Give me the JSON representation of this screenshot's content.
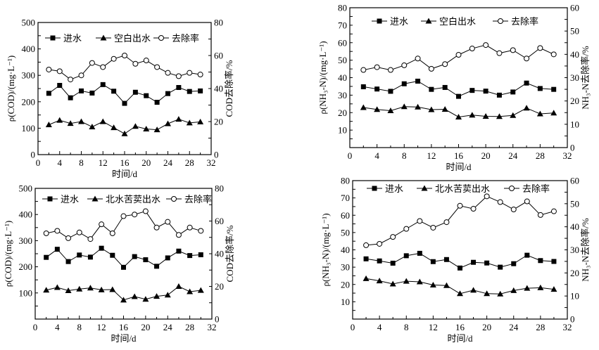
{
  "chart_data": [
    {
      "type": "line",
      "panel": "top-left",
      "xlabel": "时间/d",
      "ylabel": "ρ(COD)/(mg·L⁻¹)",
      "ylabel_right": "COD去除率/%",
      "xlim": [
        0,
        32
      ],
      "ylim": [
        0,
        500
      ],
      "ylim_right": [
        0,
        80
      ],
      "x_ticks": [
        "0",
        "4",
        "8",
        "12",
        "16",
        "20",
        "24",
        "28",
        "32"
      ],
      "y_ticks": [
        "0",
        "100",
        "200",
        "300",
        "400",
        "500"
      ],
      "y_ticks_right": [
        "0",
        "20",
        "40",
        "60",
        "80"
      ],
      "legend_position": "top",
      "x": [
        2,
        4,
        6,
        8,
        10,
        12,
        14,
        16,
        18,
        20,
        22,
        24,
        26,
        28,
        30
      ],
      "series": [
        {
          "name": "进水",
          "marker": "square",
          "axis": "left",
          "values": [
            232,
            262,
            215,
            241,
            233,
            265,
            240,
            194,
            236,
            223,
            198,
            231,
            254,
            239,
            241
          ]
        },
        {
          "name": "空白出水",
          "marker": "triangle",
          "axis": "left",
          "values": [
            113,
            130,
            118,
            125,
            105,
            125,
            102,
            79,
            107,
            97,
            94,
            117,
            134,
            120,
            124
          ]
        },
        {
          "name": "去除率",
          "marker": "circle",
          "axis": "right",
          "values": [
            51.5,
            50.5,
            45.5,
            48,
            55.5,
            53,
            58,
            60,
            55,
            57,
            53,
            49.5,
            47.5,
            49.5,
            48.5
          ]
        }
      ]
    },
    {
      "type": "line",
      "panel": "top-right",
      "xlabel": "时间/d",
      "ylabel": "ρ(NH₃-N)/(mg·L⁻¹)",
      "ylabel_right": "NH₃-N去除率/%",
      "xlim": [
        0,
        32
      ],
      "ylim": [
        0,
        80
      ],
      "ylim_right": [
        0,
        60
      ],
      "x_ticks": [
        "0",
        "4",
        "8",
        "12",
        "16",
        "20",
        "24",
        "28",
        "32"
      ],
      "y_ticks": [
        "10",
        "20",
        "30",
        "40",
        "50",
        "60",
        "70",
        "80"
      ],
      "y_ticks_right": [
        "0",
        "10",
        "20",
        "30",
        "40",
        "50",
        "60"
      ],
      "legend_position": "top",
      "x": [
        2,
        4,
        6,
        8,
        10,
        12,
        14,
        16,
        18,
        20,
        22,
        24,
        26,
        28,
        30
      ],
      "series": [
        {
          "name": "进水",
          "marker": "square",
          "axis": "left",
          "values": [
            34.8,
            33.5,
            32.2,
            36.5,
            38,
            33.3,
            34.4,
            29.3,
            32.7,
            32.3,
            30,
            31.8,
            36.9,
            33.8,
            33.3
          ]
        },
        {
          "name": "空白出水",
          "marker": "triangle",
          "axis": "left",
          "values": [
            22.9,
            21.8,
            21.1,
            23.4,
            23.2,
            21.7,
            21.9,
            17.5,
            18.6,
            17.9,
            17.8,
            18.4,
            22.6,
            19.3,
            19.8
          ]
        },
        {
          "name": "去除率",
          "marker": "circle",
          "axis": "right",
          "values": [
            33.3,
            34.5,
            33.3,
            35.3,
            38.2,
            33.8,
            35.8,
            39.8,
            42.5,
            44,
            40.5,
            41.8,
            38.2,
            42.7,
            40
          ]
        }
      ]
    },
    {
      "type": "line",
      "panel": "bottom-left",
      "xlabel": "时间/d",
      "ylabel": "ρ(COD)/(mg·L⁻¹)",
      "ylabel_right": "COD去除率/%",
      "xlim": [
        0,
        32
      ],
      "ylim": [
        0,
        500
      ],
      "ylim_right": [
        0,
        80
      ],
      "x_ticks": [
        "0",
        "4",
        "8",
        "12",
        "16",
        "20",
        "24",
        "28",
        "32"
      ],
      "y_ticks": [
        "100",
        "200",
        "300",
        "400",
        "500"
      ],
      "y_ticks_right": [
        "0",
        "20",
        "40",
        "60",
        "80"
      ],
      "legend_position": "top",
      "x": [
        2,
        4,
        6,
        8,
        10,
        12,
        14,
        16,
        18,
        20,
        22,
        24,
        26,
        28,
        30
      ],
      "series": [
        {
          "name": "进水",
          "marker": "square",
          "axis": "left",
          "values": [
            236,
            267,
            220,
            245,
            237,
            271,
            244,
            198,
            239,
            227,
            202,
            234,
            260,
            243,
            246
          ]
        },
        {
          "name": "北水苦荬出水",
          "marker": "triangle",
          "axis": "left",
          "values": [
            111,
            121,
            109,
            115,
            119,
            112,
            113,
            73,
            86,
            76,
            87,
            92,
            125,
            105,
            110
          ]
        },
        {
          "name": "去除率",
          "marker": "circle",
          "axis": "right",
          "values": [
            52.5,
            54,
            49.5,
            53,
            49,
            58,
            52.5,
            63,
            64,
            66,
            56,
            59.5,
            51.5,
            56,
            54
          ]
        }
      ]
    },
    {
      "type": "line",
      "panel": "bottom-right",
      "xlabel": "时间/d",
      "ylabel": "ρ(NH₃-N)/(mg·L⁻¹)",
      "ylabel_right": "NH₃-N去除率/%",
      "xlim": [
        0,
        32
      ],
      "ylim": [
        0,
        80
      ],
      "ylim_right": [
        0,
        60
      ],
      "x_ticks": [
        "0",
        "4",
        "8",
        "12",
        "16",
        "20",
        "24",
        "28",
        "32"
      ],
      "y_ticks": [
        "10",
        "20",
        "30",
        "40",
        "50",
        "60",
        "70",
        "80"
      ],
      "y_ticks_right": [
        "0",
        "10",
        "20",
        "30",
        "40",
        "50",
        "60"
      ],
      "legend_position": "top",
      "x": [
        2,
        4,
        6,
        8,
        10,
        12,
        14,
        16,
        18,
        20,
        22,
        24,
        26,
        28,
        30
      ],
      "series": [
        {
          "name": "进水",
          "marker": "square",
          "axis": "left",
          "values": [
            34.8,
            33.6,
            32.3,
            36.6,
            38,
            33.2,
            34.4,
            29.5,
            32.8,
            32.4,
            30,
            32,
            36.9,
            33.8,
            33.3
          ]
        },
        {
          "name": "北水苦荬出水",
          "marker": "triangle",
          "axis": "left",
          "values": [
            23.4,
            22.1,
            20.3,
            21.9,
            21.5,
            19.7,
            19.4,
            14.7,
            16.7,
            14.7,
            14.5,
            16.5,
            17.8,
            18.1,
            17.2
          ]
        },
        {
          "name": "去除率",
          "marker": "circle",
          "axis": "right",
          "values": [
            32,
            32.6,
            35.6,
            39.1,
            42.5,
            39.6,
            42,
            49.1,
            47.8,
            53.2,
            50.7,
            47.5,
            51,
            45.1,
            46.7
          ]
        }
      ]
    }
  ]
}
